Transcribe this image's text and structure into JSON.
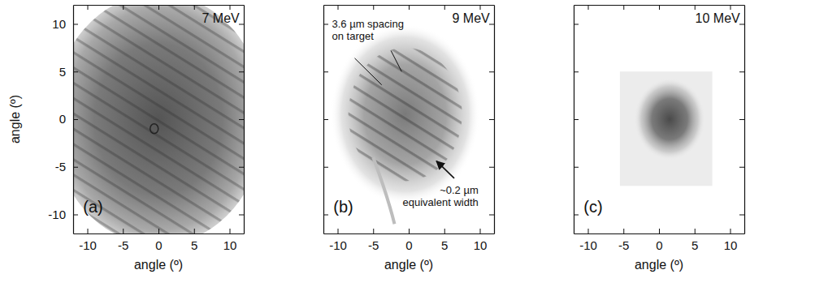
{
  "chart_data": [
    {
      "type": "image",
      "title": "7 MeV",
      "panel_label": "(a)",
      "xlabel": "angle (º)",
      "ylabel": "angle (º)",
      "xlim": [
        -12,
        12
      ],
      "ylim": [
        -12,
        12
      ],
      "xticks": [
        -10,
        -5,
        0,
        5,
        10
      ],
      "yticks": [
        -10,
        -5,
        0,
        5,
        10
      ]
    },
    {
      "type": "image",
      "title": "9 MeV",
      "panel_label": "(b)",
      "xlabel": "angle (º)",
      "xlim": [
        -12,
        12
      ],
      "ylim": [
        -12,
        12
      ],
      "xticks": [
        -10,
        -5,
        0,
        5,
        10
      ],
      "yticks": [
        -10,
        -5,
        0,
        5,
        10
      ],
      "tick_labels": "x",
      "annotations": [
        [
          "3.6 µm spacing",
          "on target"
        ],
        [
          "~0.2 µm",
          "equivalent width"
        ]
      ]
    },
    {
      "type": "image",
      "title": "10 MeV",
      "panel_label": "(c)",
      "xlabel": "angle (º)",
      "xlim": [
        -12,
        12
      ],
      "ylim": [
        -12,
        12
      ],
      "xticks": [
        -10,
        -5,
        0,
        5,
        10
      ],
      "yticks": [
        -10,
        -5,
        0,
        5,
        10
      ],
      "tick_labels": "x"
    }
  ]
}
